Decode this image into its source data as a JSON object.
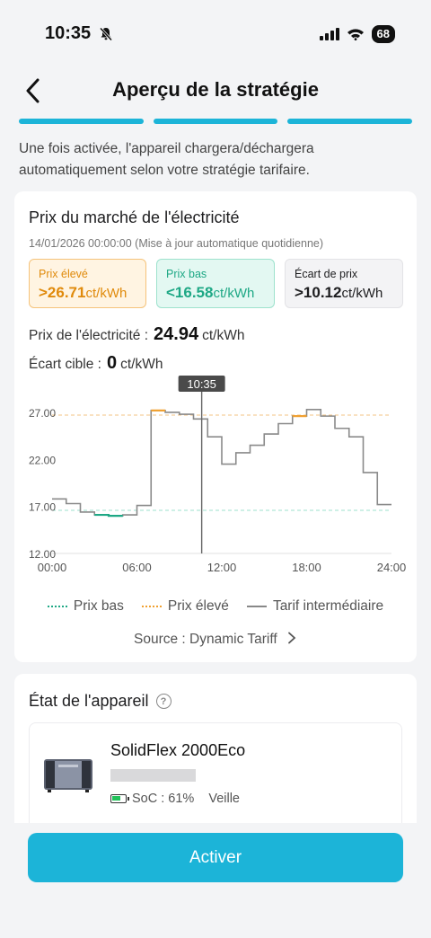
{
  "status_bar": {
    "time": "10:35",
    "battery": "68"
  },
  "nav": {
    "title": "Aperçu de la stratégie"
  },
  "progress_steps": 3,
  "intro_text": "Une fois activée, l'appareil chargera/déchargera automatiquement selon votre stratégie tarifaire.",
  "market": {
    "title": "Prix du marché de l'électricité",
    "date": "14/01/2026 00:00:00 (Mise à jour automatique quotidienne)",
    "high": {
      "label": "Prix élevé",
      "value": ">26.71",
      "unit": "ct/kWh"
    },
    "low": {
      "label": "Prix bas",
      "value": "<16.58",
      "unit": "ct/kWh"
    },
    "spread": {
      "label": "Écart de prix",
      "value": ">10.12",
      "unit": "ct/kWh"
    },
    "current_price": {
      "label": "Prix de l'électricité :",
      "value": "24.94",
      "unit": "ct/kWh"
    },
    "target_spread": {
      "label": "Écart cible :",
      "value": "0",
      "unit": "ct/kWh"
    },
    "legend": {
      "low": "Prix bas",
      "high": "Prix élevé",
      "mid": "Tarif intermédiaire"
    },
    "source": "Source : Dynamic Tariff"
  },
  "chart_data": {
    "type": "line",
    "step": true,
    "x": [
      0,
      1,
      2,
      3,
      4,
      5,
      6,
      7,
      8,
      9,
      10,
      11,
      12,
      13,
      14,
      15,
      16,
      17,
      18,
      19,
      20,
      21,
      22,
      23,
      24
    ],
    "values": [
      17.8,
      17.3,
      16.4,
      16.1,
      16.0,
      16.1,
      17.1,
      27.2,
      27.0,
      26.8,
      26.3,
      24.4,
      21.5,
      22.7,
      23.5,
      24.7,
      25.8,
      26.6,
      27.3,
      26.6,
      25.3,
      24.4,
      20.6,
      17.2,
      16.9
    ],
    "low_segments": [
      [
        3,
        5
      ]
    ],
    "high_segments": [
      [
        7,
        8
      ],
      [
        17,
        18
      ]
    ],
    "low_threshold": 16.58,
    "high_threshold": 26.71,
    "current_time_label": "10:35",
    "current_time_hour": 10.58,
    "ylim": [
      12,
      29
    ],
    "yticks": [
      "12.00",
      "17.00",
      "22.00",
      "27.00"
    ],
    "ytick_values": [
      12,
      17,
      22,
      27
    ],
    "xticks": [
      "00:00",
      "06:00",
      "12:00",
      "18:00",
      "24:00"
    ],
    "xtick_values": [
      0,
      6,
      12,
      18,
      24
    ],
    "grid": false
  },
  "device": {
    "section_title": "État de l'appareil",
    "name": "SolidFlex 2000Eco",
    "soc": "SoC : 61%",
    "state": "Veille"
  },
  "activate_label": "Activer",
  "colors": {
    "accent": "#1cb4d8",
    "low": "#1ea885",
    "high": "#f0a030",
    "mid": "#888888"
  }
}
